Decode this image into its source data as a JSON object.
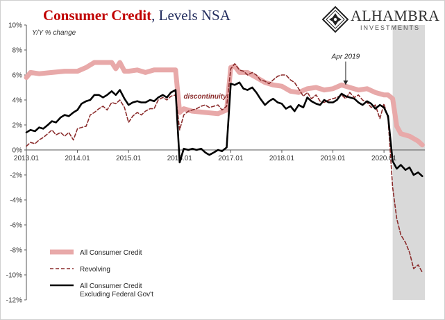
{
  "title": {
    "main": "Consumer Credit",
    "separator": ",",
    "sub": " Levels NSA"
  },
  "logo": {
    "icon": "diamond-seal-icon",
    "name": "ALHAMBRA",
    "sub": "INVESTMENTS"
  },
  "chart_data": {
    "type": "line",
    "title": "Consumer Credit, Levels NSA",
    "ylabel": "Y/Y % change",
    "xlabel": "",
    "ylim": [
      -12,
      10
    ],
    "xlim": [
      2013.0,
      2020.8
    ],
    "grid": false,
    "legend_position": "bottom-left",
    "y_ticks": [
      {
        "value": 10,
        "label": "10%"
      },
      {
        "value": 8,
        "label": "8%"
      },
      {
        "value": 6,
        "label": "6%"
      },
      {
        "value": 4,
        "label": "4%"
      },
      {
        "value": 2,
        "label": "2%"
      },
      {
        "value": 0,
        "label": "0%"
      },
      {
        "value": -2,
        "label": "-2%"
      },
      {
        "value": -4,
        "label": "-4%"
      },
      {
        "value": -6,
        "label": "-6%"
      },
      {
        "value": -8,
        "label": "-8%"
      },
      {
        "value": -10,
        "label": "-10%"
      },
      {
        "value": -12,
        "label": "-12%"
      }
    ],
    "x_ticks": [
      {
        "value": 2013.0,
        "label": "2013.01"
      },
      {
        "value": 2014.0,
        "label": "2014.01"
      },
      {
        "value": 2015.0,
        "label": "2015.01"
      },
      {
        "value": 2016.0,
        "label": "2016.01"
      },
      {
        "value": 2017.0,
        "label": "2017.01"
      },
      {
        "value": 2018.0,
        "label": "2018.01"
      },
      {
        "value": 2019.0,
        "label": "2019.01"
      },
      {
        "value": 2020.0,
        "label": "2020.01"
      }
    ],
    "shaded_region": {
      "start": 2020.17,
      "end": 2020.8,
      "color": "#d9d9d9"
    },
    "series": [
      {
        "name": "All Consumer Credit",
        "color": "#e8a9a9",
        "style": "thick",
        "x": [
          2013.0,
          2013.08,
          2013.25,
          2013.5,
          2013.75,
          2014.0,
          2014.17,
          2014.33,
          2014.5,
          2014.67,
          2014.75,
          2014.83,
          2014.92,
          2015.0,
          2015.17,
          2015.33,
          2015.5,
          2015.67,
          2015.83,
          2015.92,
          2016.0,
          2016.08,
          2016.25,
          2016.5,
          2016.75,
          2016.92,
          2017.0,
          2017.08,
          2017.17,
          2017.33,
          2017.5,
          2017.67,
          2017.83,
          2018.0,
          2018.17,
          2018.33,
          2018.5,
          2018.67,
          2018.83,
          2019.0,
          2019.17,
          2019.33,
          2019.5,
          2019.67,
          2019.83,
          2020.0,
          2020.08,
          2020.17,
          2020.25,
          2020.33,
          2020.5,
          2020.67,
          2020.75
        ],
        "y": [
          5.8,
          6.2,
          6.1,
          6.2,
          6.3,
          6.3,
          6.6,
          7.0,
          7.0,
          7.0,
          6.5,
          7.0,
          6.3,
          6.3,
          6.4,
          6.2,
          6.4,
          6.4,
          6.4,
          6.4,
          3.0,
          3.3,
          3.1,
          3.0,
          2.9,
          3.2,
          6.6,
          6.7,
          6.2,
          6.2,
          5.8,
          5.4,
          5.2,
          5.1,
          4.7,
          4.6,
          4.9,
          5.0,
          4.8,
          4.9,
          5.2,
          5.0,
          4.8,
          4.9,
          4.6,
          4.4,
          4.4,
          4.1,
          1.9,
          1.3,
          1.1,
          0.7,
          0.4
        ]
      },
      {
        "name": "Revolving",
        "color": "#8b2c2c",
        "style": "dashed",
        "x": [
          2013.0,
          2013.08,
          2013.17,
          2013.25,
          2013.33,
          2013.42,
          2013.5,
          2013.58,
          2013.67,
          2013.75,
          2013.83,
          2013.92,
          2014.0,
          2014.08,
          2014.17,
          2014.25,
          2014.33,
          2014.42,
          2014.5,
          2014.58,
          2014.67,
          2014.75,
          2014.83,
          2014.92,
          2015.0,
          2015.08,
          2015.17,
          2015.25,
          2015.33,
          2015.42,
          2015.5,
          2015.58,
          2015.67,
          2015.75,
          2015.83,
          2015.92,
          2016.0,
          2016.08,
          2016.17,
          2016.25,
          2016.33,
          2016.42,
          2016.5,
          2016.58,
          2016.67,
          2016.75,
          2016.83,
          2016.92,
          2017.0,
          2017.08,
          2017.17,
          2017.25,
          2017.33,
          2017.42,
          2017.5,
          2017.58,
          2017.67,
          2017.75,
          2017.83,
          2017.92,
          2018.0,
          2018.08,
          2018.17,
          2018.25,
          2018.33,
          2018.42,
          2018.5,
          2018.58,
          2018.67,
          2018.75,
          2018.83,
          2018.92,
          2019.0,
          2019.08,
          2019.17,
          2019.25,
          2019.33,
          2019.42,
          2019.5,
          2019.58,
          2019.67,
          2019.75,
          2019.83,
          2019.92,
          2020.0,
          2020.08,
          2020.17,
          2020.25,
          2020.33,
          2020.42,
          2020.5,
          2020.58,
          2020.67,
          2020.75
        ],
        "y": [
          0.3,
          0.6,
          0.5,
          0.8,
          1.0,
          1.3,
          1.6,
          1.2,
          1.4,
          1.1,
          1.4,
          0.8,
          1.7,
          1.8,
          1.9,
          2.8,
          3.0,
          3.3,
          3.5,
          3.2,
          3.8,
          3.7,
          4.0,
          3.4,
          2.2,
          2.7,
          3.0,
          2.8,
          3.1,
          3.3,
          3.3,
          4.0,
          4.2,
          4.0,
          4.3,
          4.4,
          1.6,
          2.8,
          3.1,
          3.2,
          3.3,
          3.5,
          3.6,
          3.4,
          3.5,
          3.6,
          3.2,
          3.5,
          6.5,
          6.9,
          6.4,
          6.3,
          6.0,
          6.2,
          6.0,
          5.6,
          5.5,
          5.3,
          5.6,
          5.9,
          6.0,
          6.0,
          5.6,
          5.4,
          4.9,
          4.3,
          4.6,
          4.1,
          4.4,
          3.9,
          3.8,
          4.0,
          4.1,
          4.2,
          4.4,
          4.1,
          4.6,
          4.2,
          4.4,
          4.0,
          3.8,
          3.4,
          3.6,
          2.5,
          3.7,
          2.5,
          -3.0,
          -5.5,
          -6.8,
          -7.4,
          -8.2,
          -9.5,
          -9.2,
          -9.8
        ]
      },
      {
        "name": "All Consumer Credit Excluding Federal Gov't",
        "color": "#000000",
        "style": "solid",
        "x": [
          2013.0,
          2013.08,
          2013.17,
          2013.25,
          2013.33,
          2013.42,
          2013.5,
          2013.58,
          2013.67,
          2013.75,
          2013.83,
          2013.92,
          2014.0,
          2014.08,
          2014.17,
          2014.25,
          2014.33,
          2014.42,
          2014.5,
          2014.58,
          2014.67,
          2014.75,
          2014.83,
          2014.92,
          2015.0,
          2015.08,
          2015.17,
          2015.25,
          2015.33,
          2015.42,
          2015.5,
          2015.58,
          2015.67,
          2015.75,
          2015.83,
          2015.92,
          2016.0,
          2016.08,
          2016.17,
          2016.25,
          2016.33,
          2016.42,
          2016.5,
          2016.58,
          2016.67,
          2016.75,
          2016.83,
          2016.92,
          2017.0,
          2017.08,
          2017.17,
          2017.25,
          2017.33,
          2017.42,
          2017.5,
          2017.58,
          2017.67,
          2017.75,
          2017.83,
          2017.92,
          2018.0,
          2018.08,
          2018.17,
          2018.25,
          2018.33,
          2018.42,
          2018.5,
          2018.58,
          2018.67,
          2018.75,
          2018.83,
          2018.92,
          2019.0,
          2019.08,
          2019.17,
          2019.25,
          2019.33,
          2019.42,
          2019.5,
          2019.58,
          2019.67,
          2019.75,
          2019.83,
          2019.92,
          2020.0,
          2020.08,
          2020.17,
          2020.25,
          2020.33,
          2020.42,
          2020.5,
          2020.58,
          2020.67,
          2020.75
        ],
        "y": [
          1.4,
          1.6,
          1.5,
          1.8,
          1.7,
          2.0,
          2.3,
          2.2,
          2.6,
          2.8,
          2.7,
          3.0,
          3.2,
          3.7,
          3.9,
          4.0,
          4.4,
          4.4,
          4.2,
          4.4,
          4.7,
          4.4,
          4.8,
          4.1,
          3.6,
          3.8,
          3.9,
          3.8,
          3.8,
          4.0,
          3.9,
          4.2,
          4.4,
          4.2,
          4.6,
          4.8,
          -1.0,
          0.1,
          0.0,
          0.1,
          0.0,
          0.1,
          -0.2,
          -0.4,
          -0.2,
          0.0,
          -0.1,
          0.2,
          5.3,
          5.2,
          5.4,
          4.9,
          4.8,
          5.0,
          4.6,
          4.1,
          3.6,
          3.9,
          4.1,
          3.8,
          3.7,
          3.3,
          3.5,
          3.1,
          3.6,
          3.4,
          4.2,
          3.9,
          3.7,
          3.6,
          4.0,
          3.8,
          3.8,
          4.0,
          4.5,
          4.3,
          4.2,
          4.1,
          3.8,
          3.6,
          3.9,
          3.7,
          3.3,
          3.6,
          3.4,
          2.7,
          -0.9,
          -1.5,
          -1.2,
          -1.6,
          -1.4,
          -2.0,
          -1.8,
          -2.1
        ]
      }
    ],
    "annotations": [
      {
        "text": "discontinuity",
        "x": 2016.5,
        "y": 4.1,
        "color": "#8b2c2c"
      },
      {
        "text": "Apr 2019",
        "x": 2019.25,
        "y": 7.3,
        "arrow_to": {
          "x": 2019.25,
          "y": 5.0
        }
      }
    ]
  }
}
